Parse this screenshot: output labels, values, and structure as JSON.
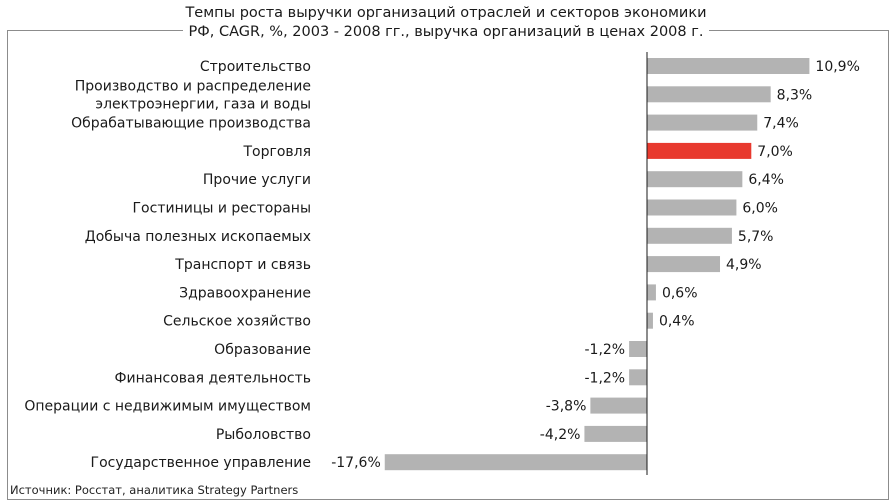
{
  "title_line1": "Темпы роста выручки организаций отраслей и секторов экономики",
  "title_line2": "РФ, CAGR, %,  2003 - 2008 гг., выручка организаций в ценах 2008 г.",
  "source": "Источник: Росстат, аналитика Strategy Partners",
  "colors": {
    "bar": "#b3b3b3",
    "highlight": "#e8392e",
    "axis": "#1a1a1a"
  },
  "chart_data": {
    "type": "bar",
    "orientation": "horizontal",
    "title": "Темпы роста выручки организаций отраслей и секторов экономики РФ, CAGR, %,  2003 - 2008 гг., выручка организаций в ценах 2008 г.",
    "categories": [
      [
        "Строительство"
      ],
      [
        "Производство и распределение",
        "электроэнергии, газа и воды"
      ],
      [
        "Обрабатывающие производства"
      ],
      [
        "Торговля"
      ],
      [
        "Прочие услуги"
      ],
      [
        "Гостиницы и рестораны"
      ],
      [
        "Добыча полезных ископаемых"
      ],
      [
        "Транспорт и связь"
      ],
      [
        "Здравоохранение"
      ],
      [
        "Сельское хозяйство"
      ],
      [
        "Образование"
      ],
      [
        "Финансовая деятельность"
      ],
      [
        "Операции с недвижимым имуществом"
      ],
      [
        "Рыболовство"
      ],
      [
        "Государственное управление"
      ]
    ],
    "values": [
      10.9,
      8.3,
      7.4,
      7.0,
      6.4,
      6.0,
      5.7,
      4.9,
      0.6,
      0.4,
      -1.2,
      -1.2,
      -3.8,
      -4.2,
      -17.6
    ],
    "labels": [
      "10,9%",
      "8,3%",
      "7,4%",
      "7,0%",
      "6,4%",
      "6,0%",
      "5,7%",
      "4,9%",
      "0,6%",
      "0,4%",
      "-1,2%",
      "-1,2%",
      "-3,8%",
      "-4,2%",
      "-17,6%"
    ],
    "highlight_index": 3,
    "grid": false,
    "legend": false
  }
}
